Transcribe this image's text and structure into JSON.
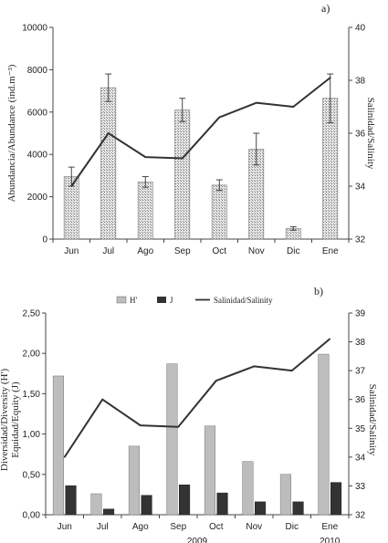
{
  "chart_data": [
    {
      "type": "bar",
      "panel_label": "a)",
      "categories": [
        "Jun",
        "Jul",
        "Ago",
        "Sep",
        "Oct",
        "Nov",
        "Dic",
        "Ene"
      ],
      "ylabel": "Abundancia/Abundance (ind.m⁻³)",
      "y2label": "Salinidad/Salinity",
      "ylim": [
        0,
        10000
      ],
      "yticks": [
        "0",
        "2000",
        "4000",
        "6000",
        "8000",
        "10000"
      ],
      "y2lim": [
        32,
        40
      ],
      "y2ticks": [
        "32",
        "34",
        "36",
        "38",
        "40"
      ],
      "bars": {
        "values": [
          2950,
          7150,
          2700,
          6100,
          2550,
          4250,
          500,
          6650
        ],
        "errors": [
          450,
          650,
          250,
          550,
          250,
          750,
          80,
          1150
        ],
        "color": "#cfcfcf"
      },
      "line": {
        "values": [
          34.0,
          36.0,
          35.1,
          35.05,
          36.6,
          37.15,
          37.0,
          38.1
        ],
        "color": "#333333"
      },
      "grid": false
    },
    {
      "type": "bar",
      "panel_label": "b)",
      "categories": [
        "Jun",
        "Jul",
        "Ago",
        "Sep",
        "Oct",
        "Nov",
        "Dic",
        "Ene"
      ],
      "year_labels": [
        {
          "text": "2009",
          "between": [
            3,
            4
          ]
        },
        {
          "text": "2010",
          "between": [
            7,
            7
          ]
        }
      ],
      "ylabel_lines": [
        "Diversidad/Diversity (H')",
        "Equidad/Equity (J)"
      ],
      "y2label": "Salinidad/Salinity",
      "ylim": [
        0,
        2.5
      ],
      "yticks": [
        "0,00",
        "0,50",
        "1,00",
        "1,50",
        "2,00",
        "2,50"
      ],
      "y2lim": [
        32,
        39
      ],
      "y2ticks": [
        "32",
        "33",
        "34",
        "35",
        "36",
        "37",
        "38",
        "39"
      ],
      "legend": [
        "H'",
        "J",
        "Salinidad/Salinity"
      ],
      "series": [
        {
          "name": "H'",
          "values": [
            1.72,
            0.26,
            0.85,
            1.87,
            1.1,
            0.66,
            0.5,
            1.99
          ],
          "color": "#bdbdbd"
        },
        {
          "name": "J",
          "values": [
            0.36,
            0.07,
            0.24,
            0.37,
            0.27,
            0.16,
            0.16,
            0.4
          ],
          "color": "#333333"
        }
      ],
      "line": {
        "name": "Salinidad/Salinity",
        "values": [
          34.0,
          36.0,
          35.1,
          35.05,
          36.65,
          37.15,
          37.0,
          38.1
        ],
        "color": "#333333"
      },
      "grid": false,
      "legend_position": "top-center"
    }
  ]
}
